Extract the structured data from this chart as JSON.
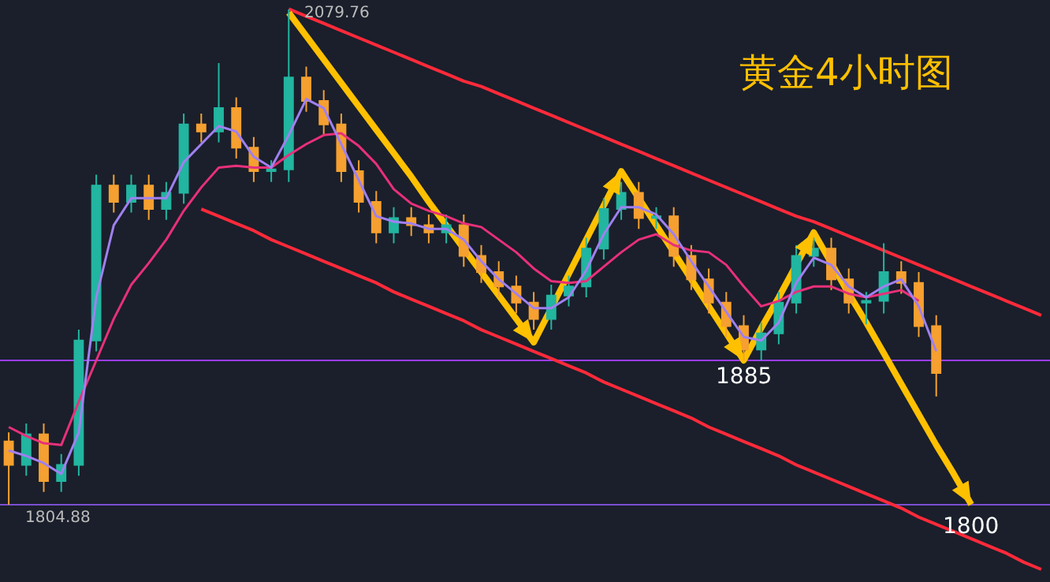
{
  "chart_data": {
    "type": "candlestick",
    "title": "黄金4小时图",
    "categories": [
      null,
      null,
      null,
      null,
      null,
      null,
      null,
      null,
      null,
      null,
      null,
      null,
      null,
      null,
      null,
      null,
      null,
      null,
      null,
      null,
      null,
      null,
      null,
      null,
      null,
      null,
      null,
      null,
      null,
      null,
      null,
      null,
      null,
      null,
      null,
      null,
      null,
      null,
      null,
      null,
      null,
      null,
      null,
      null,
      null,
      null,
      null,
      null,
      null,
      null,
      null,
      null,
      null,
      null,
      null,
      null,
      null,
      null,
      null,
      null
    ],
    "ohlc": [
      [
        1840,
        1845,
        1804.88,
        1827
      ],
      [
        1827,
        1850,
        1821,
        1844
      ],
      [
        1844,
        1850,
        1812,
        1818
      ],
      [
        1818,
        1833,
        1812,
        1827
      ],
      [
        1827,
        1902,
        1821,
        1896
      ],
      [
        1896,
        1988,
        1890,
        1982
      ],
      [
        1982,
        1988,
        1967,
        1973
      ],
      [
        1973,
        1988,
        1967,
        1982
      ],
      [
        1982,
        1988,
        1963,
        1969
      ],
      [
        1969,
        1984,
        1963,
        1978
      ],
      [
        1978,
        2022,
        1972,
        2016
      ],
      [
        2016,
        2022,
        2006,
        2012
      ],
      [
        2012,
        2050,
        2006,
        2025
      ],
      [
        2025,
        2031,
        1997,
        2003
      ],
      [
        2003,
        2009,
        1984,
        1990
      ],
      [
        1990,
        1996,
        1984,
        1991
      ],
      [
        1991,
        2079.76,
        1984,
        2042
      ],
      [
        2042,
        2048,
        2023,
        2029
      ],
      [
        2029,
        2035,
        2010,
        2016
      ],
      [
        2016,
        2022,
        1984,
        1990
      ],
      [
        1990,
        1996,
        1967,
        1973
      ],
      [
        1973,
        1979,
        1950,
        1956
      ],
      [
        1956,
        1970,
        1950,
        1964
      ],
      [
        1964,
        1970,
        1954,
        1960
      ],
      [
        1960,
        1966,
        1950,
        1956
      ],
      [
        1956,
        1966,
        1950,
        1960
      ],
      [
        1960,
        1966,
        1937,
        1943
      ],
      [
        1943,
        1949,
        1928,
        1934
      ],
      [
        1934,
        1940,
        1920,
        1926
      ],
      [
        1926,
        1932,
        1911,
        1917
      ],
      [
        1917,
        1923,
        1902,
        1908
      ],
      [
        1908,
        1927,
        1902,
        1921
      ],
      [
        1921,
        1932,
        1915,
        1926
      ],
      [
        1926,
        1953,
        1920,
        1947
      ],
      [
        1947,
        1975,
        1941,
        1969
      ],
      [
        1969,
        1984,
        1963,
        1978
      ],
      [
        1978,
        1984,
        1958,
        1964
      ],
      [
        1964,
        1970,
        1958,
        1965
      ],
      [
        1965,
        1970,
        1937,
        1943
      ],
      [
        1943,
        1949,
        1924,
        1930
      ],
      [
        1930,
        1936,
        1911,
        1917
      ],
      [
        1917,
        1923,
        1898,
        1904
      ],
      [
        1904,
        1910,
        1885,
        1891
      ],
      [
        1891,
        1906,
        1885,
        1900
      ],
      [
        1900,
        1923,
        1894,
        1917
      ],
      [
        1917,
        1949,
        1911,
        1943
      ],
      [
        1943,
        1953,
        1937,
        1947
      ],
      [
        1947,
        1953,
        1924,
        1930
      ],
      [
        1930,
        1936,
        1911,
        1917
      ],
      [
        1917,
        1923,
        1905,
        1918
      ],
      [
        1918,
        1950,
        1911,
        1934
      ],
      [
        1934,
        1940,
        1922,
        1928
      ],
      [
        1928,
        1934,
        1898,
        1904
      ],
      [
        1904,
        1910,
        1865,
        1878
      ],
      null,
      null,
      null,
      null,
      null,
      null
    ],
    "colors": [
      "#f5a030",
      "#22b5a0",
      "#f5a030",
      "#22b5a0",
      "#22b5a0",
      "#22b5a0",
      "#f5a030",
      "#22b5a0",
      "#f5a030",
      "#22b5a0",
      "#22b5a0",
      "#f5a030",
      "#22b5a0",
      "#f5a030",
      "#f5a030",
      "#22b5a0",
      "#22b5a0",
      "#f5a030",
      "#f5a030",
      "#f5a030",
      "#f5a030",
      "#f5a030",
      "#22b5a0",
      "#f5a030",
      "#f5a030",
      "#22b5a0",
      "#f5a030",
      "#f5a030",
      "#f5a030",
      "#f5a030",
      "#f5a030",
      "#22b5a0",
      "#22b5a0",
      "#22b5a0",
      "#22b5a0",
      "#22b5a0",
      "#f5a030",
      "#22b5a0",
      "#f5a030",
      "#f5a030",
      "#f5a030",
      "#f5a030",
      "#f5a030",
      "#22b5a0",
      "#22b5a0",
      "#22b5a0",
      "#22b5a0",
      "#f5a030",
      "#f5a030",
      "#22b5a0",
      "#22b5a0",
      "#f5a030",
      "#f5a030",
      "#f5a030",
      null,
      null,
      null,
      null,
      null,
      null
    ],
    "series": [
      {
        "type": "line",
        "color": "#e8307a",
        "values": [
          1848,
          1843,
          1839,
          1838,
          1862,
          1885,
          1908,
          1927,
          1939,
          1952,
          1968,
          1981,
          1992,
          1993,
          1992,
          1992,
          1999,
          2005,
          2010,
          2011,
          2004,
          1994,
          1980,
          1972,
          1968,
          1965,
          1961,
          1959,
          1952,
          1945,
          1936,
          1929,
          1928,
          1929,
          1937,
          1945,
          1952,
          1955,
          1949,
          1946,
          1945,
          1938,
          1926,
          1915,
          1918,
          1923,
          1926,
          1926,
          1922,
          1920,
          1922,
          1924,
          1918,
          null,
          null,
          null,
          null,
          null,
          null,
          null
        ]
      },
      {
        "type": "line",
        "color": "#a080f0",
        "values": [
          1835,
          1832,
          1828,
          1822,
          1845,
          1920,
          1960,
          1975,
          1975,
          1975,
          1995,
          2005,
          2015,
          2012,
          1998,
          1992,
          2010,
          2030,
          2025,
          2005,
          1985,
          1965,
          1962,
          1961,
          1958,
          1958,
          1952,
          1940,
          1930,
          1922,
          1914,
          1914,
          1920,
          1935,
          1955,
          1970,
          1970,
          1966,
          1955,
          1940,
          1926,
          1912,
          1898,
          1896,
          1906,
          1928,
          1942,
          1938,
          1926,
          1920,
          1926,
          1930,
          1915,
          1890,
          null,
          null,
          null,
          null,
          null,
          null
        ]
      },
      {
        "type": "line",
        "color": "#ff2a3a",
        "values": [
          null,
          null,
          null,
          null,
          null,
          null,
          null,
          null,
          null,
          null,
          null,
          null,
          null,
          null,
          null,
          null,
          2080,
          2076,
          2072,
          2068,
          2064,
          2060,
          2056,
          2052,
          2048,
          2044,
          2040,
          2037,
          2033,
          2029,
          2025,
          2021,
          2017,
          2013,
          2009,
          2005,
          2001,
          1997,
          1993,
          1989,
          1985,
          1981,
          1977,
          1973,
          1969,
          1965,
          1962,
          1958,
          1954,
          1950,
          1946,
          1942,
          1938,
          1934,
          1930,
          1926,
          1922,
          1918,
          1914,
          1910
        ]
      },
      {
        "type": "line",
        "color": "#ff2a3a",
        "values": [
          null,
          null,
          null,
          null,
          null,
          null,
          null,
          null,
          null,
          null,
          null,
          1969,
          1965,
          1961,
          1957,
          1952,
          1948,
          1944,
          1940,
          1936,
          1932,
          1928,
          1923,
          1919,
          1915,
          1911,
          1907,
          1902,
          1898,
          1894,
          1890,
          1886,
          1882,
          1878,
          1873,
          1869,
          1865,
          1861,
          1857,
          1853,
          1848,
          1844,
          1840,
          1836,
          1832,
          1827,
          1823,
          1819,
          1815,
          1811,
          1807,
          1803,
          1798,
          1794,
          1790,
          1786,
          1782,
          1778,
          1773,
          1769
        ]
      },
      {
        "type": "line",
        "color": "#ffc000",
        "values": [
          null,
          null,
          null,
          null,
          null,
          null,
          null,
          null,
          null,
          null,
          null,
          null,
          null,
          null,
          null,
          null,
          2078,
          2065,
          2052,
          2039,
          2026,
          2013,
          2000,
          1987,
          1973,
          1960,
          1947,
          1934,
          1921,
          1908,
          1895,
          1914,
          1933,
          1952,
          1971,
          1990,
          1975,
          1960,
          1945,
          1930,
          1915,
          1900,
          1885,
          1903,
          1920,
          1938,
          1956,
          1939,
          1922,
          1906,
          1889,
          1872,
          1855,
          1838,
          1822,
          1805,
          null,
          null,
          null,
          null
        ]
      }
    ],
    "ylim": [
      1762,
      2085
    ],
    "ref_lines": [
      {
        "axis": "y",
        "value": 1885,
        "label": "1885",
        "color": "#9b3cff"
      },
      {
        "axis": "y",
        "value": 1804.88,
        "label": null,
        "color": "#7a4fd0"
      }
    ],
    "annotations": [
      "2079.76",
      {
        "text": "1804.88",
        "y": 1804.88
      },
      {
        "text": "1800",
        "y": 1805
      }
    ]
  }
}
